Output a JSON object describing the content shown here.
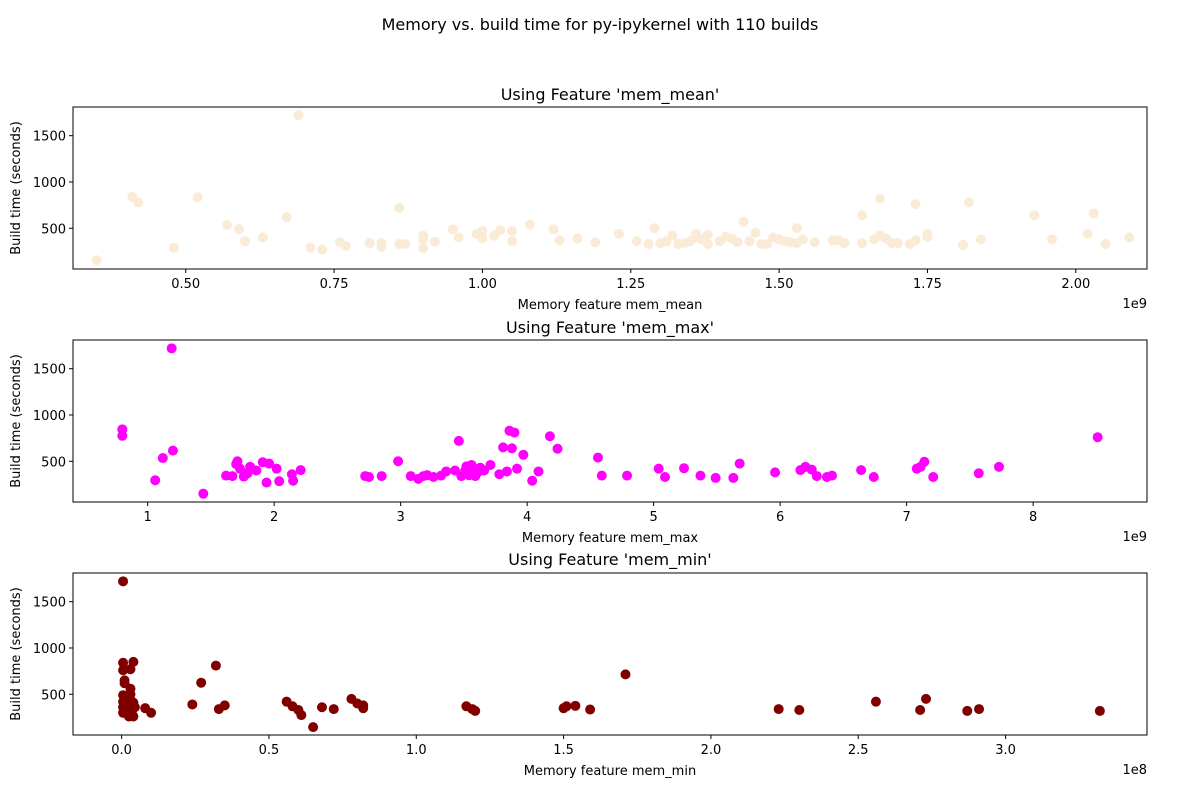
{
  "figure": {
    "title": "Memory vs. build time for py-ipykernel with 110 builds"
  },
  "chart_data": [
    {
      "type": "scatter",
      "title": "Using Feature 'mem_mean'",
      "xlabel": "Memory feature mem_mean",
      "ylabel": "Build time (seconds)",
      "x_offset_label": "1e9",
      "color": "#faebd7",
      "xlim": [
        0.31,
        2.12
      ],
      "ylim": [
        60,
        1810
      ],
      "x_ticks": [
        0.5,
        0.75,
        1.0,
        1.25,
        1.5,
        1.75,
        2.0
      ],
      "x_tick_labels": [
        "0.50",
        "0.75",
        "1.00",
        "1.25",
        "1.50",
        "1.75",
        "2.00"
      ],
      "y_ticks": [
        500,
        1000,
        1500
      ],
      "y_tick_labels": [
        "500",
        "1000",
        "1500"
      ],
      "points": [
        [
          0.35,
          155
        ],
        [
          0.41,
          840
        ],
        [
          0.42,
          780
        ],
        [
          0.48,
          290
        ],
        [
          0.52,
          835
        ],
        [
          0.57,
          535
        ],
        [
          0.59,
          490
        ],
        [
          0.6,
          360
        ],
        [
          0.63,
          400
        ],
        [
          0.67,
          620
        ],
        [
          0.69,
          1720
        ],
        [
          0.71,
          290
        ],
        [
          0.73,
          270
        ],
        [
          0.76,
          350
        ],
        [
          0.77,
          310
        ],
        [
          0.81,
          340
        ],
        [
          0.83,
          300
        ],
        [
          0.83,
          340
        ],
        [
          0.86,
          720
        ],
        [
          0.86,
          330
        ],
        [
          0.87,
          330
        ],
        [
          0.9,
          380
        ],
        [
          0.9,
          285
        ],
        [
          0.9,
          420
        ],
        [
          0.92,
          355
        ],
        [
          0.95,
          490
        ],
        [
          0.96,
          400
        ],
        [
          0.99,
          440
        ],
        [
          1.0,
          470
        ],
        [
          1.0,
          390
        ],
        [
          1.02,
          420
        ],
        [
          1.03,
          480
        ],
        [
          1.05,
          470
        ],
        [
          1.05,
          360
        ],
        [
          1.08,
          540
        ],
        [
          1.12,
          490
        ],
        [
          1.13,
          370
        ],
        [
          1.16,
          390
        ],
        [
          1.19,
          350
        ],
        [
          1.23,
          440
        ],
        [
          1.26,
          360
        ],
        [
          1.28,
          330
        ],
        [
          1.29,
          500
        ],
        [
          1.3,
          340
        ],
        [
          1.31,
          360
        ],
        [
          1.32,
          420
        ],
        [
          1.33,
          330
        ],
        [
          1.34,
          340
        ],
        [
          1.35,
          360
        ],
        [
          1.36,
          440
        ],
        [
          1.36,
          400
        ],
        [
          1.37,
          380
        ],
        [
          1.38,
          430
        ],
        [
          1.38,
          330
        ],
        [
          1.4,
          360
        ],
        [
          1.41,
          410
        ],
        [
          1.42,
          390
        ],
        [
          1.43,
          350
        ],
        [
          1.44,
          570
        ],
        [
          1.45,
          360
        ],
        [
          1.46,
          450
        ],
        [
          1.47,
          330
        ],
        [
          1.48,
          330
        ],
        [
          1.49,
          400
        ],
        [
          1.5,
          380
        ],
        [
          1.51,
          360
        ],
        [
          1.52,
          350
        ],
        [
          1.53,
          500
        ],
        [
          1.53,
          340
        ],
        [
          1.54,
          380
        ],
        [
          1.56,
          350
        ],
        [
          1.59,
          370
        ],
        [
          1.6,
          370
        ],
        [
          1.61,
          340
        ],
        [
          1.64,
          640
        ],
        [
          1.64,
          340
        ],
        [
          1.66,
          380
        ],
        [
          1.67,
          820
        ],
        [
          1.67,
          420
        ],
        [
          1.68,
          390
        ],
        [
          1.69,
          340
        ],
        [
          1.7,
          340
        ],
        [
          1.72,
          330
        ],
        [
          1.73,
          760
        ],
        [
          1.73,
          370
        ],
        [
          1.75,
          410
        ],
        [
          1.75,
          440
        ],
        [
          1.81,
          320
        ],
        [
          1.82,
          780
        ],
        [
          1.84,
          380
        ],
        [
          1.93,
          640
        ],
        [
          1.96,
          380
        ],
        [
          2.02,
          440
        ],
        [
          2.03,
          660
        ],
        [
          2.05,
          330
        ],
        [
          2.09,
          400
        ]
      ]
    },
    {
      "type": "scatter",
      "title": "Using Feature 'mem_max'",
      "xlabel": "Memory feature mem_max",
      "ylabel": "Build time (seconds)",
      "x_offset_label": "1e9",
      "color": "#ff00ff",
      "xlim": [
        0.41,
        8.9
      ],
      "ylim": [
        60,
        1810
      ],
      "x_ticks": [
        1,
        2,
        3,
        4,
        5,
        6,
        7,
        8
      ],
      "x_tick_labels": [
        "1",
        "2",
        "3",
        "4",
        "5",
        "6",
        "7",
        "8"
      ],
      "y_ticks": [
        500,
        1000,
        1500
      ],
      "y_tick_labels": [
        "500",
        "1000",
        "1500"
      ],
      "points": [
        [
          0.8,
          845
        ],
        [
          0.8,
          775
        ],
        [
          1.06,
          295
        ],
        [
          1.12,
          535
        ],
        [
          1.19,
          1720
        ],
        [
          1.2,
          615
        ],
        [
          1.44,
          150
        ],
        [
          1.62,
          345
        ],
        [
          1.67,
          340
        ],
        [
          1.7,
          470
        ],
        [
          1.71,
          500
        ],
        [
          1.73,
          420
        ],
        [
          1.76,
          335
        ],
        [
          1.79,
          370
        ],
        [
          1.81,
          440
        ],
        [
          1.86,
          400
        ],
        [
          1.91,
          490
        ],
        [
          1.94,
          270
        ],
        [
          1.96,
          475
        ],
        [
          2.02,
          420
        ],
        [
          2.04,
          285
        ],
        [
          2.14,
          360
        ],
        [
          2.15,
          290
        ],
        [
          2.21,
          405
        ],
        [
          2.72,
          340
        ],
        [
          2.75,
          330
        ],
        [
          2.85,
          340
        ],
        [
          2.98,
          500
        ],
        [
          3.08,
          340
        ],
        [
          3.14,
          310
        ],
        [
          3.18,
          340
        ],
        [
          3.21,
          350
        ],
        [
          3.26,
          330
        ],
        [
          3.32,
          345
        ],
        [
          3.36,
          390
        ],
        [
          3.43,
          400
        ],
        [
          3.46,
          720
        ],
        [
          3.48,
          340
        ],
        [
          3.51,
          400
        ],
        [
          3.52,
          445
        ],
        [
          3.54,
          350
        ],
        [
          3.56,
          460
        ],
        [
          3.57,
          430
        ],
        [
          3.59,
          340
        ],
        [
          3.61,
          380
        ],
        [
          3.63,
          430
        ],
        [
          3.66,
          400
        ],
        [
          3.71,
          460
        ],
        [
          3.78,
          360
        ],
        [
          3.81,
          650
        ],
        [
          3.84,
          390
        ],
        [
          3.86,
          830
        ],
        [
          3.88,
          640
        ],
        [
          3.9,
          810
        ],
        [
          3.92,
          420
        ],
        [
          3.97,
          570
        ],
        [
          4.04,
          290
        ],
        [
          4.09,
          390
        ],
        [
          4.18,
          770
        ],
        [
          4.24,
          635
        ],
        [
          4.56,
          540
        ],
        [
          4.59,
          345
        ],
        [
          4.79,
          345
        ],
        [
          5.04,
          420
        ],
        [
          5.09,
          330
        ],
        [
          5.24,
          425
        ],
        [
          5.37,
          345
        ],
        [
          5.49,
          320
        ],
        [
          5.63,
          320
        ],
        [
          5.68,
          475
        ],
        [
          5.96,
          380
        ],
        [
          6.16,
          405
        ],
        [
          6.2,
          440
        ],
        [
          6.25,
          410
        ],
        [
          6.29,
          340
        ],
        [
          6.37,
          330
        ],
        [
          6.41,
          345
        ],
        [
          6.64,
          405
        ],
        [
          6.74,
          330
        ],
        [
          7.08,
          420
        ],
        [
          7.11,
          440
        ],
        [
          7.14,
          495
        ],
        [
          7.21,
          330
        ],
        [
          7.57,
          370
        ],
        [
          7.73,
          440
        ],
        [
          8.51,
          760
        ]
      ]
    },
    {
      "type": "scatter",
      "title": "Using Feature 'mem_min'",
      "xlabel": "Memory feature mem_min",
      "ylabel": "Build time (seconds)",
      "x_offset_label": "1e8",
      "color": "#800000",
      "xlim": [
        -0.165,
        3.48
      ],
      "ylim": [
        60,
        1810
      ],
      "x_ticks": [
        0.0,
        0.5,
        1.0,
        1.5,
        2.0,
        2.5,
        3.0
      ],
      "x_tick_labels": [
        "0.0",
        "0.5",
        "1.0",
        "1.5",
        "2.0",
        "2.5",
        "3.0"
      ],
      "y_ticks": [
        500,
        1000,
        1500
      ],
      "y_tick_labels": [
        "500",
        "1000",
        "1500"
      ],
      "points": [
        [
          0.005,
          1720
        ],
        [
          0.005,
          840
        ],
        [
          0.005,
          760
        ],
        [
          0.01,
          650
        ],
        [
          0.01,
          620
        ],
        [
          0.005,
          490
        ],
        [
          0.01,
          460
        ],
        [
          0.005,
          420
        ],
        [
          0.01,
          390
        ],
        [
          0.005,
          360
        ],
        [
          0.01,
          330
        ],
        [
          0.005,
          300
        ],
        [
          0.02,
          480
        ],
        [
          0.02,
          420
        ],
        [
          0.02,
          350
        ],
        [
          0.02,
          310
        ],
        [
          0.025,
          260
        ],
        [
          0.03,
          770
        ],
        [
          0.03,
          560
        ],
        [
          0.03,
          500
        ],
        [
          0.03,
          440
        ],
        [
          0.03,
          380
        ],
        [
          0.035,
          320
        ],
        [
          0.035,
          280
        ],
        [
          0.04,
          850
        ],
        [
          0.04,
          410
        ],
        [
          0.04,
          260
        ],
        [
          0.045,
          360
        ],
        [
          0.08,
          350
        ],
        [
          0.1,
          300
        ],
        [
          0.24,
          390
        ],
        [
          0.27,
          625
        ],
        [
          0.32,
          810
        ],
        [
          0.33,
          340
        ],
        [
          0.35,
          380
        ],
        [
          0.56,
          420
        ],
        [
          0.58,
          370
        ],
        [
          0.6,
          330
        ],
        [
          0.61,
          275
        ],
        [
          0.65,
          145
        ],
        [
          0.68,
          360
        ],
        [
          0.72,
          340
        ],
        [
          0.78,
          450
        ],
        [
          0.8,
          400
        ],
        [
          0.82,
          380
        ],
        [
          0.82,
          350
        ],
        [
          1.17,
          370
        ],
        [
          1.19,
          340
        ],
        [
          1.2,
          320
        ],
        [
          1.5,
          350
        ],
        [
          1.51,
          370
        ],
        [
          1.54,
          375
        ],
        [
          1.59,
          335
        ],
        [
          1.71,
          715
        ],
        [
          2.23,
          340
        ],
        [
          2.3,
          330
        ],
        [
          2.56,
          420
        ],
        [
          2.71,
          330
        ],
        [
          2.73,
          450
        ],
        [
          2.87,
          320
        ],
        [
          2.91,
          340
        ],
        [
          3.32,
          320
        ]
      ]
    }
  ]
}
